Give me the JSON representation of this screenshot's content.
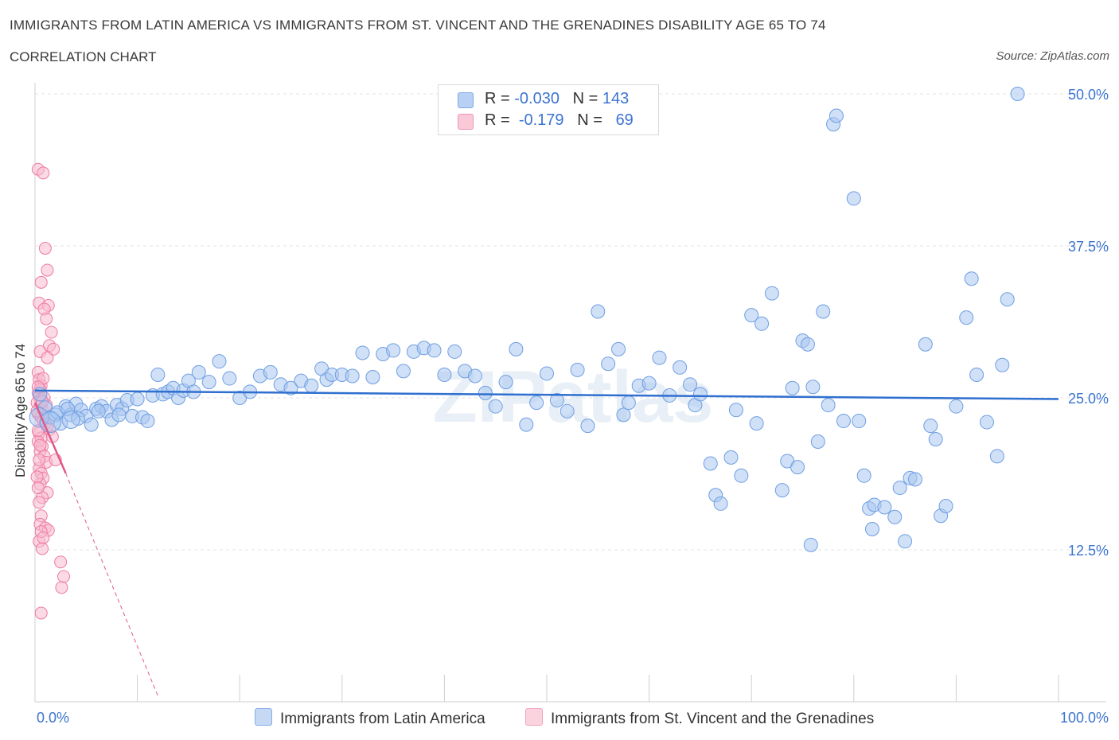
{
  "title": "IMMIGRANTS FROM LATIN AMERICA VS IMMIGRANTS FROM ST. VINCENT AND THE GRENADINES DISABILITY AGE 65 TO 74",
  "subtitle": "CORRELATION CHART",
  "source": "Source: ZipAtlas.com",
  "watermark": "ZIPatlas",
  "legend": {
    "rows": [
      {
        "r_label": "R =",
        "r_value": "-0.030",
        "n_label": "N =",
        "n_value": "143",
        "color": "#9dbfee"
      },
      {
        "r_label": "R =",
        "r_value": "-0.179",
        "n_label": "N =",
        "n_value": "69",
        "color": "#f5b3c9"
      }
    ]
  },
  "bottom_legend": [
    {
      "label": "Immigrants from Latin America",
      "color": "#a9c6f0"
    },
    {
      "label": "Immigrants from St. Vincent and the Grenadines",
      "color": "#f7c0d2"
    }
  ],
  "chart_data": {
    "type": "scatter",
    "ylabel": "Disability Age 65 to 74",
    "xlim": [
      0,
      100
    ],
    "ylim": [
      0,
      50
    ],
    "x_tick_labels": [
      "0.0%",
      "100.0%"
    ],
    "y_ticks": [
      12.5,
      25.0,
      37.5,
      50.0
    ],
    "y_tick_labels": [
      "12.5%",
      "25.0%",
      "37.5%",
      "50.0%"
    ],
    "grid": "horizontal dashed",
    "colors": {
      "blue": "#6f9fe3",
      "pink": "#ee7aa3",
      "blue_line": "#2f6fcf",
      "pink_line": "#e0588a",
      "axis_label": "#3b74d0"
    },
    "series": [
      {
        "name": "Immigrants from Latin America",
        "trend": {
          "x0": 0,
          "y0": 25.6,
          "x1": 100,
          "y1": 24.9
        },
        "points": [
          [
            0.5,
            25.3
          ],
          [
            1.0,
            24.2
          ],
          [
            1.5,
            23.4
          ],
          [
            2.0,
            23.6
          ],
          [
            2.5,
            22.9
          ],
          [
            3.0,
            24.3
          ],
          [
            3.5,
            23.6
          ],
          [
            4.0,
            24.5
          ],
          [
            4.5,
            24.0
          ],
          [
            5.0,
            23.5
          ],
          [
            5.5,
            22.8
          ],
          [
            6.0,
            24.1
          ],
          [
            6.5,
            24.3
          ],
          [
            7.0,
            23.9
          ],
          [
            7.5,
            23.2
          ],
          [
            8.0,
            24.4
          ],
          [
            8.5,
            24.1
          ],
          [
            9.0,
            24.8
          ],
          [
            9.5,
            23.5
          ],
          [
            10.0,
            24.9
          ],
          [
            10.5,
            23.4
          ],
          [
            11.0,
            23.1
          ],
          [
            11.5,
            25.2
          ],
          [
            12.0,
            26.9
          ],
          [
            12.5,
            25.3
          ],
          [
            13.0,
            25.5
          ],
          [
            13.5,
            25.8
          ],
          [
            14.0,
            25.0
          ],
          [
            14.5,
            25.6
          ],
          [
            15.0,
            26.4
          ],
          [
            15.5,
            25.5
          ],
          [
            16.0,
            27.1
          ],
          [
            17.0,
            26.3
          ],
          [
            18.0,
            28.0
          ],
          [
            19.0,
            26.6
          ],
          [
            20.0,
            25.0
          ],
          [
            21.0,
            25.5
          ],
          [
            22.0,
            26.8
          ],
          [
            23.0,
            27.1
          ],
          [
            24.0,
            26.1
          ],
          [
            25.0,
            25.8
          ],
          [
            26.0,
            26.4
          ],
          [
            27.0,
            26.0
          ],
          [
            28.0,
            27.4
          ],
          [
            28.5,
            26.5
          ],
          [
            29.0,
            26.9
          ],
          [
            30.0,
            26.9
          ],
          [
            31.0,
            26.8
          ],
          [
            32.0,
            28.7
          ],
          [
            33.0,
            26.7
          ],
          [
            34.0,
            28.6
          ],
          [
            35.0,
            28.9
          ],
          [
            36.0,
            27.2
          ],
          [
            37.0,
            28.8
          ],
          [
            38.0,
            29.1
          ],
          [
            39.0,
            28.9
          ],
          [
            40.0,
            26.9
          ],
          [
            41.0,
            28.8
          ],
          [
            42.0,
            27.2
          ],
          [
            43.0,
            26.8
          ],
          [
            44.0,
            25.4
          ],
          [
            45.0,
            24.3
          ],
          [
            46.0,
            26.3
          ],
          [
            47.0,
            29.0
          ],
          [
            48.0,
            22.8
          ],
          [
            49.0,
            24.6
          ],
          [
            50.0,
            27.0
          ],
          [
            51.0,
            24.8
          ],
          [
            52.0,
            23.9
          ],
          [
            53.0,
            27.3
          ],
          [
            54.0,
            22.7
          ],
          [
            55.0,
            32.1
          ],
          [
            56.0,
            27.8
          ],
          [
            57.0,
            29.0
          ],
          [
            57.5,
            23.6
          ],
          [
            58.0,
            24.6
          ],
          [
            59.0,
            26.0
          ],
          [
            60.0,
            26.2
          ],
          [
            61.0,
            28.3
          ],
          [
            62.0,
            25.2
          ],
          [
            63.0,
            27.5
          ],
          [
            64.0,
            26.1
          ],
          [
            64.5,
            24.4
          ],
          [
            65.0,
            25.3
          ],
          [
            66.0,
            19.6
          ],
          [
            66.5,
            17.0
          ],
          [
            67.0,
            16.3
          ],
          [
            68.0,
            20.1
          ],
          [
            68.5,
            24.0
          ],
          [
            69.0,
            18.6
          ],
          [
            70.0,
            31.8
          ],
          [
            70.5,
            22.9
          ],
          [
            71.0,
            31.1
          ],
          [
            72.0,
            33.6
          ],
          [
            73.0,
            17.4
          ],
          [
            73.5,
            19.8
          ],
          [
            74.0,
            25.8
          ],
          [
            74.5,
            19.3
          ],
          [
            75.0,
            29.7
          ],
          [
            75.5,
            29.4
          ],
          [
            75.8,
            12.9
          ],
          [
            76.0,
            25.9
          ],
          [
            76.5,
            21.4
          ],
          [
            77.0,
            32.1
          ],
          [
            77.5,
            24.4
          ],
          [
            78.0,
            47.5
          ],
          [
            78.3,
            48.2
          ],
          [
            79.0,
            23.1
          ],
          [
            80.0,
            41.4
          ],
          [
            80.5,
            23.1
          ],
          [
            81.0,
            18.6
          ],
          [
            81.5,
            15.9
          ],
          [
            81.8,
            14.2
          ],
          [
            82.0,
            16.2
          ],
          [
            83.0,
            16.0
          ],
          [
            84.0,
            15.2
          ],
          [
            84.5,
            17.6
          ],
          [
            85.0,
            13.2
          ],
          [
            85.5,
            18.4
          ],
          [
            86.0,
            18.3
          ],
          [
            87.0,
            29.4
          ],
          [
            87.5,
            22.7
          ],
          [
            88.0,
            21.6
          ],
          [
            88.5,
            15.3
          ],
          [
            89.0,
            16.1
          ],
          [
            90.0,
            24.3
          ],
          [
            91.0,
            31.6
          ],
          [
            91.5,
            34.8
          ],
          [
            92.0,
            26.9
          ],
          [
            93.0,
            23.0
          ],
          [
            94.0,
            20.2
          ],
          [
            94.5,
            27.7
          ],
          [
            95.0,
            33.1
          ],
          [
            96.0,
            50.0
          ],
          [
            2.2,
            23.8
          ],
          [
            3.2,
            24.1
          ],
          [
            4.2,
            23.3
          ],
          [
            6.2,
            23.9
          ],
          [
            8.2,
            23.6
          ]
        ]
      },
      {
        "name": "Immigrants from St. Vincent and the Grenadines",
        "trend": {
          "x0": 0,
          "y0": 24.6,
          "x1": 3.0,
          "y1": 18.8
        },
        "trend_extension": {
          "x0": 3.0,
          "y0": 18.8,
          "x1": 12.0,
          "y1": 0.5
        },
        "points": [
          [
            0.3,
            43.8
          ],
          [
            0.8,
            43.5
          ],
          [
            1.0,
            37.3
          ],
          [
            1.2,
            35.5
          ],
          [
            0.6,
            34.5
          ],
          [
            0.4,
            32.8
          ],
          [
            1.3,
            32.6
          ],
          [
            0.9,
            32.3
          ],
          [
            1.1,
            31.5
          ],
          [
            1.6,
            30.4
          ],
          [
            1.4,
            29.3
          ],
          [
            1.8,
            29.0
          ],
          [
            0.5,
            28.8
          ],
          [
            1.2,
            28.3
          ],
          [
            0.3,
            27.1
          ],
          [
            0.4,
            26.5
          ],
          [
            0.6,
            26.0
          ],
          [
            0.5,
            25.7
          ],
          [
            0.3,
            25.4
          ],
          [
            0.4,
            25.1
          ],
          [
            0.6,
            24.9
          ],
          [
            0.2,
            24.6
          ],
          [
            0.5,
            24.3
          ],
          [
            0.7,
            24.0
          ],
          [
            0.3,
            23.7
          ],
          [
            0.6,
            23.4
          ],
          [
            0.8,
            23.1
          ],
          [
            1.0,
            22.9
          ],
          [
            1.2,
            22.6
          ],
          [
            1.4,
            22.4
          ],
          [
            0.4,
            22.1
          ],
          [
            0.6,
            21.7
          ],
          [
            0.3,
            21.4
          ],
          [
            0.7,
            21.0
          ],
          [
            0.5,
            20.6
          ],
          [
            0.9,
            20.2
          ],
          [
            1.1,
            19.7
          ],
          [
            0.4,
            19.2
          ],
          [
            0.6,
            18.8
          ],
          [
            0.8,
            18.4
          ],
          [
            0.5,
            17.9
          ],
          [
            1.2,
            17.2
          ],
          [
            0.7,
            16.8
          ],
          [
            0.6,
            15.3
          ],
          [
            0.5,
            14.6
          ],
          [
            1.0,
            14.3
          ],
          [
            1.3,
            14.1
          ],
          [
            0.4,
            13.2
          ],
          [
            0.7,
            12.6
          ],
          [
            2.5,
            11.5
          ],
          [
            2.8,
            10.3
          ],
          [
            2.6,
            9.4
          ],
          [
            0.6,
            7.3
          ],
          [
            2.0,
            19.9
          ],
          [
            1.7,
            21.8
          ],
          [
            0.9,
            25.0
          ],
          [
            1.1,
            24.4
          ],
          [
            0.2,
            23.9
          ],
          [
            0.8,
            26.6
          ],
          [
            0.3,
            22.3
          ],
          [
            0.5,
            21.1
          ],
          [
            0.4,
            19.9
          ],
          [
            0.2,
            18.5
          ],
          [
            0.3,
            17.6
          ],
          [
            0.4,
            16.4
          ],
          [
            0.6,
            14.0
          ],
          [
            0.8,
            13.5
          ],
          [
            0.3,
            25.9
          ],
          [
            0.7,
            24.7
          ]
        ]
      }
    ]
  }
}
